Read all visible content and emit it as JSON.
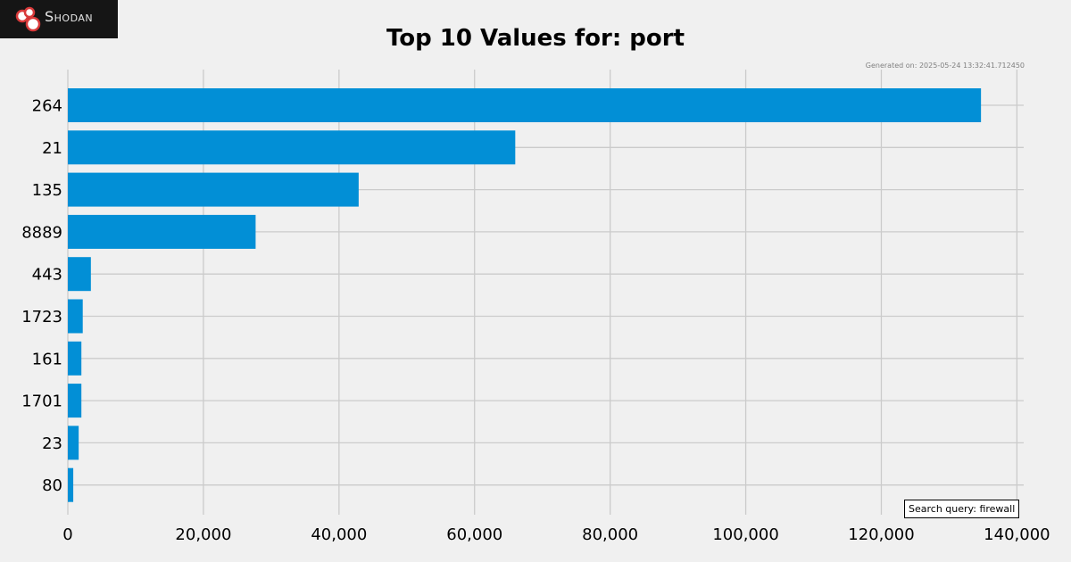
{
  "logo": {
    "text": "Shodan"
  },
  "generated_text": "Generated on: 2025-05-24 13:32:41.712450",
  "search_query_text": "Search query: firewall",
  "chart_data": {
    "type": "bar",
    "orientation": "horizontal",
    "title": "Top 10 Values for: port",
    "xlabel": "",
    "ylabel": "",
    "categories": [
      "264",
      "21",
      "135",
      "8889",
      "443",
      "1723",
      "161",
      "1701",
      "23",
      "80"
    ],
    "values": [
      134700,
      66000,
      42900,
      27700,
      3400,
      2200,
      2000,
      2000,
      1600,
      800
    ],
    "xlim": [
      0,
      141000
    ],
    "x_ticks": [
      0,
      20000,
      40000,
      60000,
      80000,
      100000,
      120000,
      140000
    ],
    "x_tick_labels": [
      "0",
      "20,000",
      "40,000",
      "60,000",
      "80,000",
      "100,000",
      "120,000",
      "140,000"
    ],
    "grid": true,
    "bar_color": "#028fd6",
    "grid_color": "#cbcbcb"
  }
}
